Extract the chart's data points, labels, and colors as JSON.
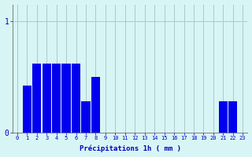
{
  "values": [
    0,
    0.42,
    0.62,
    0.62,
    0.62,
    0.62,
    0.62,
    0.28,
    0.5,
    0,
    0,
    0,
    0,
    0,
    0,
    0,
    0,
    0,
    0,
    0,
    0,
    0.28,
    0.28,
    0
  ],
  "bar_color": "#0000ee",
  "background_color": "#d8f5f5",
  "grid_color": "#adc8c8",
  "axis_label_color": "#0000bb",
  "tick_color": "#0000bb",
  "xlabel": "Précipitations 1h ( mm )",
  "ylim": [
    0,
    1.15
  ],
  "xlim": [
    -0.5,
    23.5
  ],
  "yticks": [
    0,
    1
  ],
  "ytick_labels": [
    "0",
    "1"
  ],
  "xticks": [
    0,
    1,
    2,
    3,
    4,
    5,
    6,
    7,
    8,
    9,
    10,
    11,
    12,
    13,
    14,
    15,
    16,
    17,
    18,
    19,
    20,
    21,
    22,
    23
  ]
}
